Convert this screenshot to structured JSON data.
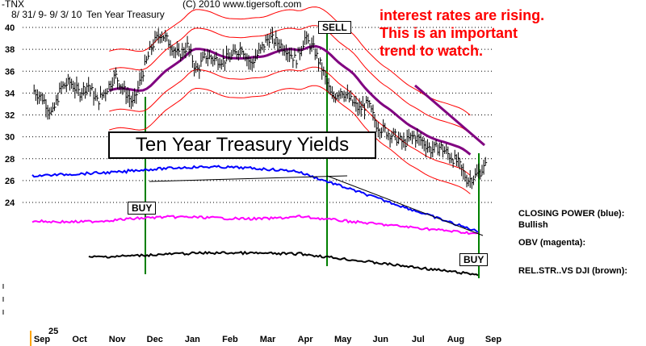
{
  "header": {
    "symbol": "-TNX",
    "date_range": "8/ 31/ 9- 9/ 3/ 10",
    "name": "Ten Year Treasury",
    "copyright": "(C) 2010 www.tigersoft.com"
  },
  "annotation": {
    "lines": [
      "interest rates are rising.",
      "This is an important",
      "trend to watch."
    ],
    "color": "#ff0000"
  },
  "signals": [
    {
      "label": "SELL",
      "month": "Apr"
    },
    {
      "label": "BUY",
      "month": "Nov"
    },
    {
      "label": "BUY",
      "month": "Aug"
    }
  ],
  "legend": {
    "closing_power": "CLOSING POWER (blue):",
    "closing_power_status": "Bullish",
    "obv": "OBV (magenta):",
    "rel_str": "REL.STR..VS DJI (brown):"
  },
  "chart_data": {
    "type": "line",
    "title": "Ten Year Treasury Yields",
    "y_ticks": [
      24,
      26,
      28,
      30,
      32,
      34,
      36,
      38,
      40
    ],
    "ylim": [
      22.5,
      41.5
    ],
    "bottom_label": "25",
    "x_ticks": [
      "Sep",
      "Oct",
      "Nov",
      "Dec",
      "Jan",
      "Feb",
      "Mar",
      "Apr",
      "May",
      "Jun",
      "Jul",
      "Aug",
      "Sep"
    ],
    "months_index": [
      0,
      1,
      2,
      3,
      4,
      5,
      6,
      7,
      8,
      9,
      10,
      11,
      12
    ],
    "price": [
      34.2,
      33.5,
      32.0,
      34.5,
      35.0,
      34.0,
      34.8,
      33.2,
      34.3,
      35.6,
      34.2,
      33.0,
      35.8,
      38.2,
      39.5,
      38.6,
      37.4,
      38.3,
      36.0,
      37.4,
      37.1,
      37.0,
      37.4,
      38.2,
      36.6,
      37.8,
      39.1,
      38.6,
      38.0,
      37.0,
      39.0,
      38.0,
      36.0,
      33.5,
      34.3,
      33.4,
      32.5,
      33.0,
      31.0,
      30.5,
      30.0,
      29.4,
      30.1,
      29.6,
      28.8,
      29.1,
      28.3,
      27.6,
      26.0,
      26.5,
      27.3
    ],
    "series": [
      {
        "name": "CLOSING POWER (blue):",
        "color": "#0000ff"
      },
      {
        "name": "OBV (magenta):",
        "color": "#ff00ff"
      },
      {
        "name": "REL.STR..VS DJI (brown):",
        "color": "#000000"
      }
    ],
    "colors": {
      "price": "#000000",
      "bands": "#ff0000",
      "avg": "#800080",
      "signal": "#008000",
      "grid": "#000000"
    }
  }
}
